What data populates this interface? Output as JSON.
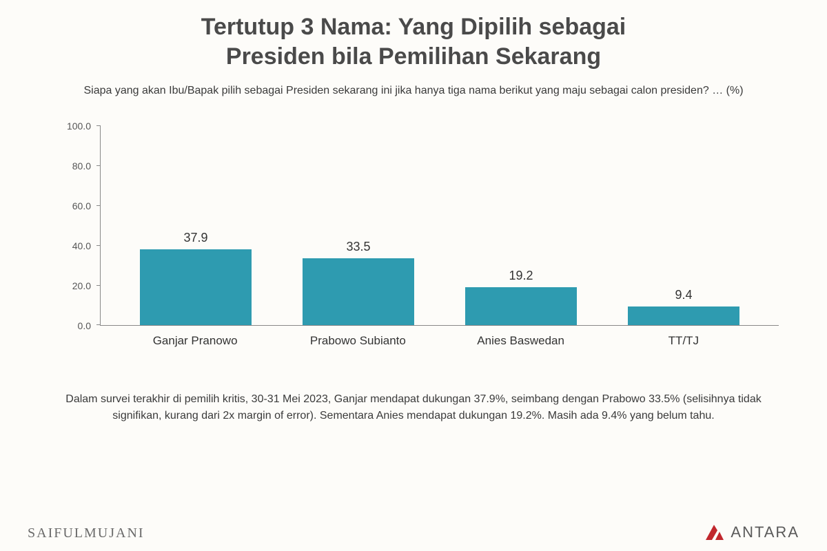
{
  "title_line1": "Tertutup 3 Nama: Yang Dipilih sebagai",
  "title_line2": "Presiden bila Pemilihan Sekarang",
  "subtitle": "Siapa yang akan Ibu/Bapak pilih sebagai Presiden sekarang ini jika hanya tiga nama berikut yang maju sebagai calon presiden? … (%)",
  "chart": {
    "type": "bar",
    "ylim": [
      0,
      100
    ],
    "ytick_step": 20,
    "yticks": [
      "0.0",
      "20.0",
      "40.0",
      "60.0",
      "80.0",
      "100.0"
    ],
    "categories": [
      "Ganjar Pranowo",
      "Prabowo Subianto",
      "Anies Baswedan",
      "TT/TJ"
    ],
    "values": [
      37.9,
      33.5,
      19.2,
      9.4
    ],
    "value_labels": [
      "37.9",
      "33.5",
      "19.2",
      "9.4"
    ],
    "bar_color": "#2e9bb0",
    "axis_color": "#888888",
    "background_color": "#fdfcf9",
    "value_fontsize": 18,
    "label_fontsize": 17,
    "tick_fontsize": 14,
    "bar_width_ratio": 0.78
  },
  "footnote": "Dalam survei terakhir di pemilih kritis, 30-31 Mei 2023, Ganjar mendapat dukungan 37.9%, seimbang dengan Prabowo 33.5% (selisihnya tidak signifikan, kurang dari 2x margin of error). Sementara Anies mendapat dukungan 19.2%. Masih ada 9.4% yang belum tahu.",
  "source_left": "SAIFULMUJANI",
  "source_right": "ANTARA",
  "logo_color": "#c1272d",
  "title_color": "#4a4a4a",
  "text_color": "#3a3a3a",
  "title_fontsize": 34,
  "subtitle_fontsize": 16,
  "footnote_fontsize": 16
}
